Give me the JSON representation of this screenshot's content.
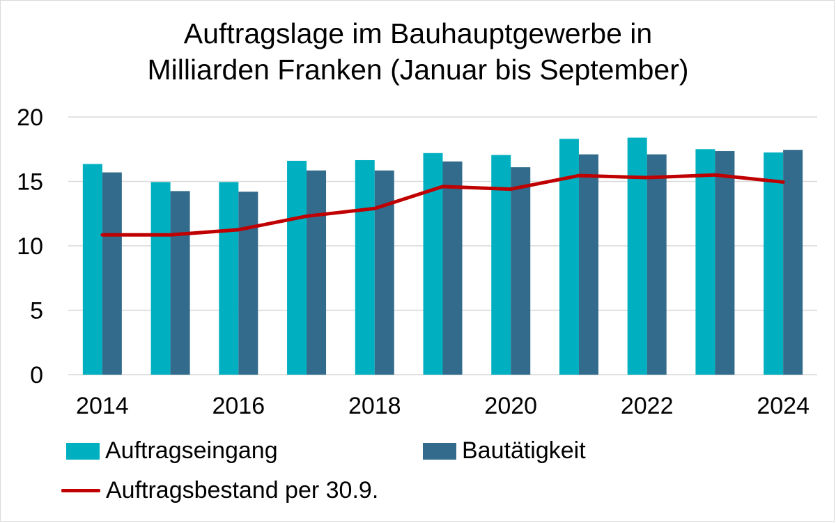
{
  "chart_data": {
    "type": "bar",
    "title_lines": [
      "Auftragslage im Bauhauptgewerbe in",
      "Milliarden Franken (Januar bis September)"
    ],
    "categories": [
      "2014",
      "2015",
      "2016",
      "2017",
      "2018",
      "2019",
      "2020",
      "2021",
      "2022",
      "2023",
      "2024"
    ],
    "x_tick_labels": [
      "2014",
      "2016",
      "2018",
      "2020",
      "2022",
      "2024"
    ],
    "y_ticks": [
      "0",
      "5",
      "10",
      "15",
      "20"
    ],
    "ylim": [
      0,
      20
    ],
    "grid": true,
    "legend_placement": "bottom",
    "series": [
      {
        "name": "Auftragseingang",
        "kind": "bar",
        "color": "#00b0c0",
        "values": [
          16.35,
          14.95,
          14.95,
          16.6,
          16.65,
          17.2,
          17.05,
          18.3,
          18.4,
          17.5,
          17.25
        ]
      },
      {
        "name": "Bautätigkeit",
        "kind": "bar",
        "color": "#336b8c",
        "values": [
          15.7,
          14.25,
          14.2,
          15.85,
          15.85,
          16.55,
          16.1,
          17.1,
          17.1,
          17.35,
          17.45
        ]
      },
      {
        "name": "Auftragsbestand per 30.9.",
        "kind": "line",
        "color": "#c00000",
        "values": [
          10.85,
          10.85,
          11.25,
          12.3,
          12.9,
          14.6,
          14.4,
          15.45,
          15.3,
          15.5,
          14.95
        ]
      }
    ]
  }
}
